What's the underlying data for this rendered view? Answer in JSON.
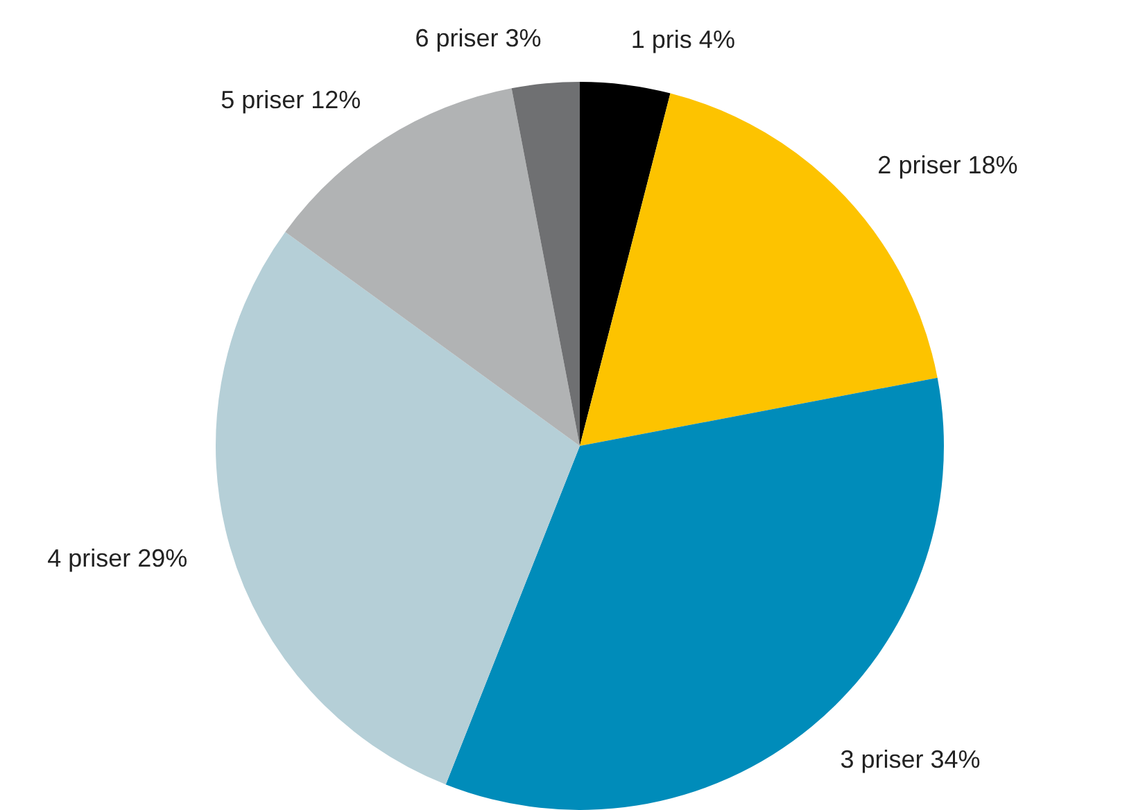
{
  "chart_data": {
    "type": "pie",
    "categories": [
      "1 pris",
      "2 priser",
      "3 priser",
      "4 priser",
      "5 priser",
      "6 priser"
    ],
    "values": [
      4,
      18,
      34,
      29,
      12,
      3
    ],
    "value_labels": [
      "4%",
      "18%",
      "34%",
      "29%",
      "12%",
      "3%"
    ],
    "colors": [
      "#000000",
      "#fdc300",
      "#008cba",
      "#b5cfd7",
      "#b1b3b4",
      "#6f7072"
    ],
    "legend": false
  }
}
